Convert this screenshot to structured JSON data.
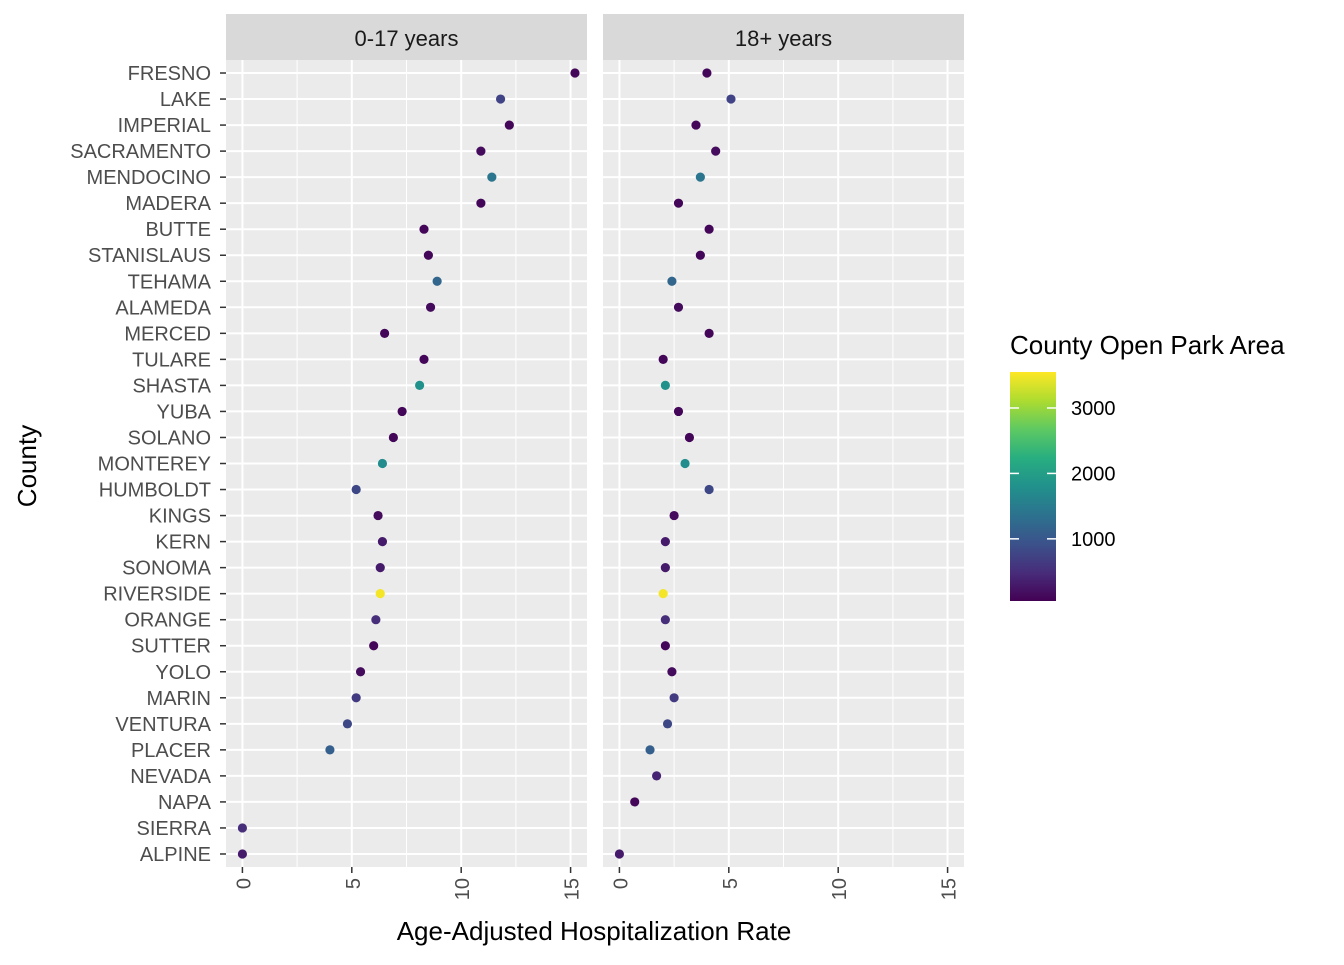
{
  "chart_data": {
    "type": "scatter",
    "facets": [
      "0-17 years",
      "18+ years"
    ],
    "xlabel": "Age-Adjusted Hospitalization Rate",
    "ylabel": "County",
    "xlim": [
      -0.75,
      15.75
    ],
    "x_ticks": [
      "0",
      "5",
      "10",
      "15"
    ],
    "grid": true,
    "legend": {
      "title": "County Open Park Area",
      "position": "right",
      "ticks": [
        "1000",
        "2000",
        "3000"
      ],
      "range": [
        50,
        3550
      ]
    },
    "counties": [
      "FRESNO",
      "LAKE",
      "IMPERIAL",
      "SACRAMENTO",
      "MENDOCINO",
      "MADERA",
      "BUTTE",
      "STANISLAUS",
      "TEHAMA",
      "ALAMEDA",
      "MERCED",
      "TULARE",
      "SHASTA",
      "YUBA",
      "SOLANO",
      "MONTEREY",
      "HUMBOLDT",
      "KINGS",
      "KERN",
      "SONOMA",
      "RIVERSIDE",
      "ORANGE",
      "SUTTER",
      "YOLO",
      "MARIN",
      "VENTURA",
      "PLACER",
      "NEVADA",
      "NAPA",
      "SIERRA",
      "ALPINE"
    ],
    "park_area": [
      100,
      750,
      100,
      150,
      1400,
      100,
      100,
      100,
      1200,
      150,
      100,
      100,
      1800,
      100,
      100,
      1750,
      800,
      150,
      300,
      300,
      3500,
      500,
      100,
      150,
      650,
      800,
      1100,
      400,
      100,
      500,
      300
    ],
    "series": [
      {
        "name": "0-17 years",
        "x": [
          15.2,
          11.8,
          12.2,
          10.9,
          11.4,
          10.9,
          8.3,
          8.5,
          8.9,
          8.6,
          6.5,
          8.3,
          8.1,
          7.3,
          6.9,
          6.4,
          5.2,
          6.2,
          6.4,
          6.3,
          6.3,
          6.1,
          6.0,
          5.4,
          5.2,
          4.8,
          4.0,
          null,
          null,
          0.0,
          0.0
        ]
      },
      {
        "name": "18+ years",
        "x": [
          4.0,
          5.1,
          3.5,
          4.4,
          3.7,
          2.7,
          4.1,
          3.7,
          2.4,
          2.7,
          4.1,
          2.0,
          2.1,
          2.7,
          3.2,
          3.0,
          4.1,
          2.5,
          2.1,
          2.1,
          2.0,
          2.1,
          2.1,
          2.4,
          2.5,
          2.2,
          1.4,
          1.7,
          0.7,
          null,
          0.0
        ]
      }
    ]
  }
}
